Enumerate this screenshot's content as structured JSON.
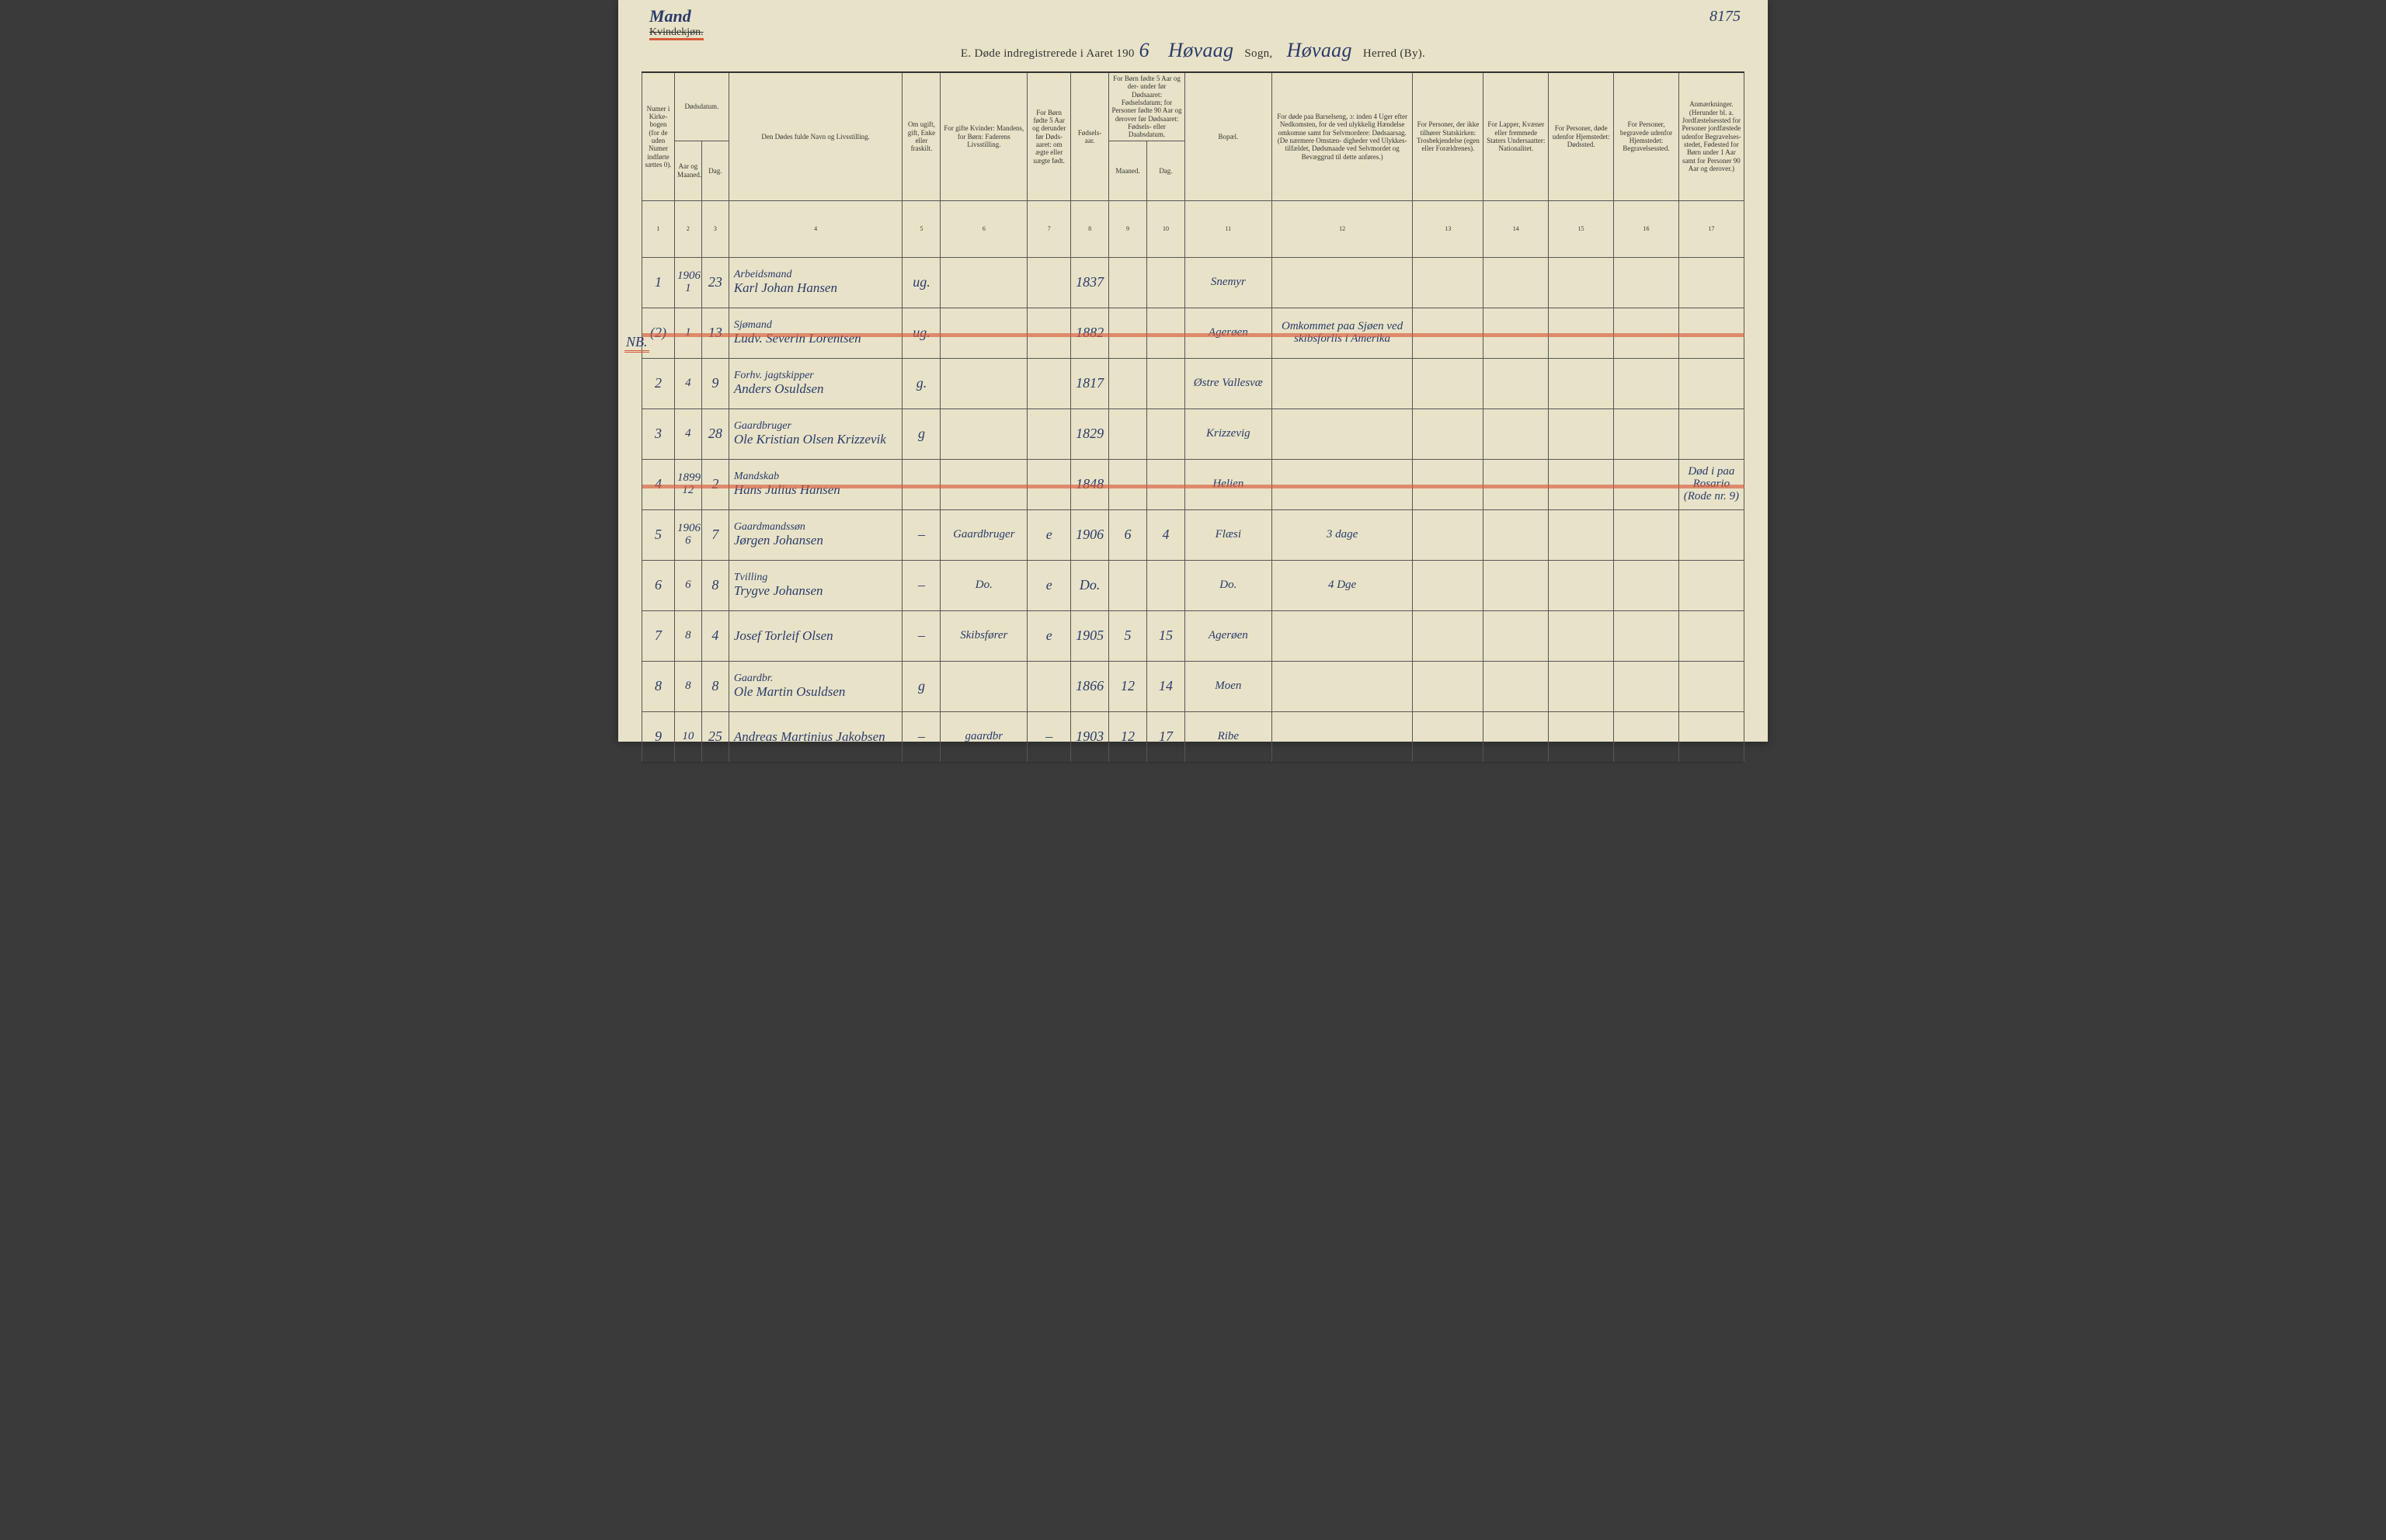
{
  "annotations": {
    "mand": "Mand",
    "kvindekjon": "Kvindekjøn.",
    "top_right": "8175",
    "nb_margin": "NB."
  },
  "title": {
    "prefix": "E.   Døde indregistrerede i Aaret 190",
    "year_suffix": "6",
    "sogn_hw": "Høvaag",
    "sogn_label": "Sogn,",
    "herred_hw": "Høvaag",
    "herred_label": "Herred (By)."
  },
  "columns": {
    "widths_pct": [
      3.0,
      2.5,
      2.5,
      16.0,
      3.5,
      8.0,
      4.0,
      3.5,
      3.5,
      3.5,
      8.0,
      13.0,
      6.5,
      6.0,
      6.0,
      6.0,
      6.0
    ],
    "h1": "Numer i Kirke- bogen (for de uden Numer indførte sættes 0).",
    "h2_top": "Dødsdatum.",
    "h2a": "Aar og Maaned.",
    "h2b": "Dag.",
    "h3": "Den Dødes fulde Navn og Livsstilling.",
    "h4": "Om ugift, gift, Enke eller fraskilt.",
    "h5": "For gifte Kvinder: Mandens, for Børn: Faderens Livsstilling.",
    "h6": "For Børn fødte 5 Aar og derunder før Døds- aaret: om ægte eller uægte født.",
    "h7": "Fødsels- aar.",
    "h8_top": "For Børn fødte 5 Aar og der- under før Dødsaaret: Fødselsdatum; for Personer fødte 90 Aar og derover før Dødsaaret: Fødsels- eller Daabsdatum.",
    "h8a": "Maaned.",
    "h8b": "Dag.",
    "h9": "Bopæl.",
    "h10": "For døde paa Barselseng, ɔ: inden 4 Uger efter Nedkomsten, for de ved ulykkelig Hændelse omkomne samt for Selvmordere: Dødsaarsag. (De nærmere Omstæn- digheder ved Ulykkes- tilfældet, Dødsmaade ved Selvmordet og Bevæggrud til dette anføres.)",
    "h11": "For Personer, der ikke tilhører Statskirken: Trosbekjendelse (egen eller Forældrenes).",
    "h12": "For Lapper, Kvæner eller fremmede Staters Undersaatter: Nationalitet.",
    "h13": "For Personer, døde udenfor Hjemstedet: Dødssted.",
    "h14": "For Personer, begravede udenfor Hjemstedet: Begravelsessted.",
    "h15": "Anmærkninger. (Herunder bl. a. Jordfæstelsessted for Personer jordfæstede udenfor Begravelses- stedet, Fødested for Børn under 1 Aar samt for Personer 90 Aar og derover.)",
    "nums": [
      "1",
      "2",
      "3",
      "4",
      "5",
      "6",
      "7",
      "8",
      "9",
      "10",
      "11",
      "12",
      "13",
      "14",
      "15",
      "16",
      "17"
    ]
  },
  "rows": [
    {
      "strike": false,
      "num": "1",
      "year": "1906",
      "month_day": "1",
      "day": "23",
      "occupation": "Arbeidsmand",
      "name": "Karl Johan Hansen",
      "marital": "ug.",
      "father": "",
      "legit": "",
      "birthyear": "1837",
      "bm": "",
      "bd": "",
      "residence": "Snemyr",
      "cause": "",
      "faith": "",
      "nat": "",
      "deathplace": "",
      "burial": "",
      "remarks": ""
    },
    {
      "strike": true,
      "num": "(2)",
      "year": "",
      "month_day": "1",
      "day": "13",
      "occupation": "Sjømand",
      "name": "Ludv. Severin Lorentsen",
      "marital": "ug.",
      "father": "",
      "legit": "",
      "birthyear": "1882",
      "bm": "",
      "bd": "",
      "residence": "Agerøen",
      "cause": "Omkommet paa Sjøen ved skibsforlis i Amerika",
      "faith": "",
      "nat": "",
      "deathplace": "",
      "burial": "",
      "remarks": ""
    },
    {
      "strike": false,
      "num": "2",
      "year": "",
      "month_day": "4",
      "day": "9",
      "occupation": "Forhv. jagtskipper",
      "name": "Anders Osuldsen",
      "marital": "g.",
      "father": "",
      "legit": "",
      "birthyear": "1817",
      "bm": "",
      "bd": "",
      "residence": "Østre Vallesvæ",
      "cause": "",
      "faith": "",
      "nat": "",
      "deathplace": "",
      "burial": "",
      "remarks": ""
    },
    {
      "strike": false,
      "num": "3",
      "year": "",
      "month_day": "4",
      "day": "28",
      "occupation": "Gaardbruger",
      "name": "Ole Kristian Olsen Krizzevik",
      "marital": "g",
      "father": "",
      "legit": "",
      "birthyear": "1829",
      "bm": "",
      "bd": "",
      "residence": "Krizzevig",
      "cause": "",
      "faith": "",
      "nat": "",
      "deathplace": "",
      "burial": "",
      "remarks": ""
    },
    {
      "strike": true,
      "num": "4",
      "year": "1899",
      "month_day": "12",
      "day": "2",
      "occupation": "Mandskab",
      "name": "Hans Julius Hansen",
      "marital": "",
      "father": "",
      "legit": "",
      "birthyear": "1848",
      "bm": "",
      "bd": "",
      "residence": "Helien",
      "cause": "",
      "faith": "",
      "nat": "",
      "deathplace": "",
      "burial": "",
      "remarks": "Død i paa Rosario (Rode nr. 9)"
    },
    {
      "strike": false,
      "num": "5",
      "year": "1906",
      "month_day": "6",
      "day": "7",
      "occupation": "Gaardmandssøn",
      "name": "Jørgen Johansen",
      "marital": "–",
      "father": "Gaardbruger",
      "legit": "e",
      "birthyear": "1906",
      "bm": "6",
      "bd": "4",
      "residence": "Flæsi",
      "cause": "3 dage",
      "faith": "",
      "nat": "",
      "deathplace": "",
      "burial": "",
      "remarks": ""
    },
    {
      "strike": false,
      "num": "6",
      "year": "",
      "month_day": "6",
      "day": "8",
      "occupation": "Tvilling",
      "name": "Trygve Johansen",
      "marital": "–",
      "father": "Do.",
      "legit": "e",
      "birthyear": "Do.",
      "bm": "",
      "bd": "",
      "residence": "Do.",
      "cause": "4 Dge",
      "faith": "",
      "nat": "",
      "deathplace": "",
      "burial": "",
      "remarks": ""
    },
    {
      "strike": false,
      "num": "7",
      "year": "",
      "month_day": "8",
      "day": "4",
      "occupation": "",
      "name": "Josef Torleif Olsen",
      "marital": "–",
      "father": "Skibsfører",
      "legit": "e",
      "birthyear": "1905",
      "bm": "5",
      "bd": "15",
      "residence": "Agerøen",
      "cause": "",
      "faith": "",
      "nat": "",
      "deathplace": "",
      "burial": "",
      "remarks": ""
    },
    {
      "strike": false,
      "num": "8",
      "year": "",
      "month_day": "8",
      "day": "8",
      "occupation": "Gaardbr.",
      "name": "Ole Martin Osuldsen",
      "marital": "g",
      "father": "",
      "legit": "",
      "birthyear": "1866",
      "bm": "12",
      "bd": "14",
      "residence": "Moen",
      "cause": "",
      "faith": "",
      "nat": "",
      "deathplace": "",
      "burial": "",
      "remarks": ""
    },
    {
      "strike": false,
      "num": "9",
      "year": "",
      "month_day": "10",
      "day": "25",
      "occupation": "",
      "name": "Andreas Martinius Jakobsen",
      "marital": "–",
      "father": "gaardbr",
      "legit": "–",
      "birthyear": "1903",
      "bm": "12",
      "bd": "17",
      "residence": "Ribe",
      "cause": "",
      "faith": "",
      "nat": "",
      "deathplace": "",
      "burial": "",
      "remarks": ""
    }
  ],
  "colors": {
    "paper": "#e8e3c8",
    "ink_print": "#333333",
    "ink_pen": "#2a3a6a",
    "red_crayon": "#d85a3a"
  }
}
